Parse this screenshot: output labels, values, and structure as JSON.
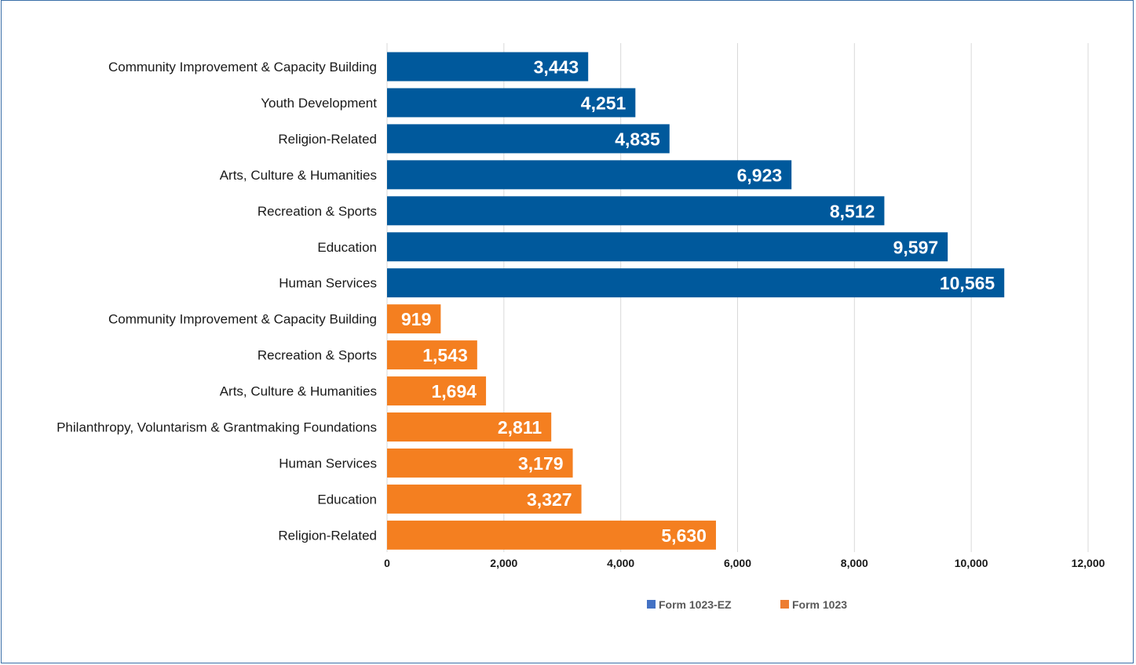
{
  "chart_data": {
    "type": "bar",
    "orientation": "horizontal",
    "title": "",
    "xlabel": "",
    "ylabel": "",
    "xlim": [
      0,
      12000
    ],
    "x_ticks": [
      0,
      2000,
      4000,
      6000,
      8000,
      10000,
      12000
    ],
    "x_tick_labels": [
      "0",
      "2,000",
      "4,000",
      "6,000",
      "8,000",
      "10,000",
      "12,000"
    ],
    "grid": "vertical",
    "legend_position": "bottom",
    "series": [
      {
        "name": "Form 1023-EZ",
        "color": "#00599c",
        "legend_color": "#4472c4",
        "categories": [
          "Community Improvement & Capacity Building",
          "Youth Development",
          "Religion-Related",
          "Arts, Culture & Humanities",
          "Recreation & Sports",
          "Education",
          "Human Services"
        ],
        "values": [
          3443,
          4251,
          4835,
          6923,
          8512,
          9597,
          10565
        ],
        "value_labels": [
          "3,443",
          "4,251",
          "4,835",
          "6,923",
          "8,512",
          "9,597",
          "10,565"
        ]
      },
      {
        "name": "Form 1023",
        "color": "#f47f20",
        "legend_color": "#ed7d31",
        "categories": [
          "Community Improvement & Capacity Building",
          "Recreation & Sports",
          "Arts, Culture & Humanities",
          "Philanthropy, Voluntarism & Grantmaking Foundations",
          "Human Services",
          "Education",
          "Religion-Related"
        ],
        "values": [
          919,
          1543,
          1694,
          2811,
          3179,
          3327,
          5630
        ],
        "value_labels": [
          "919",
          "1,543",
          "1,694",
          "2,811",
          "3,179",
          "3,327",
          "5,630"
        ]
      }
    ]
  }
}
